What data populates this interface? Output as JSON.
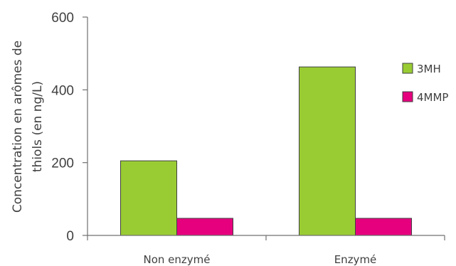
{
  "chart_data": {
    "type": "bar",
    "categories": [
      "Non enzymé",
      "Enzymé"
    ],
    "series": [
      {
        "name": "3MH",
        "color": "#99cc33",
        "values": [
          205,
          463
        ]
      },
      {
        "name": "4MMP",
        "color": "#e6007e",
        "values": [
          47,
          47
        ]
      }
    ],
    "ylabel_lines": [
      "Concentration en arômes de",
      "thiols (en ng/L)"
    ],
    "ylim": [
      0,
      600
    ],
    "yticks": [
      0,
      200,
      400,
      600
    ],
    "grid": false,
    "legend_position": "right"
  }
}
